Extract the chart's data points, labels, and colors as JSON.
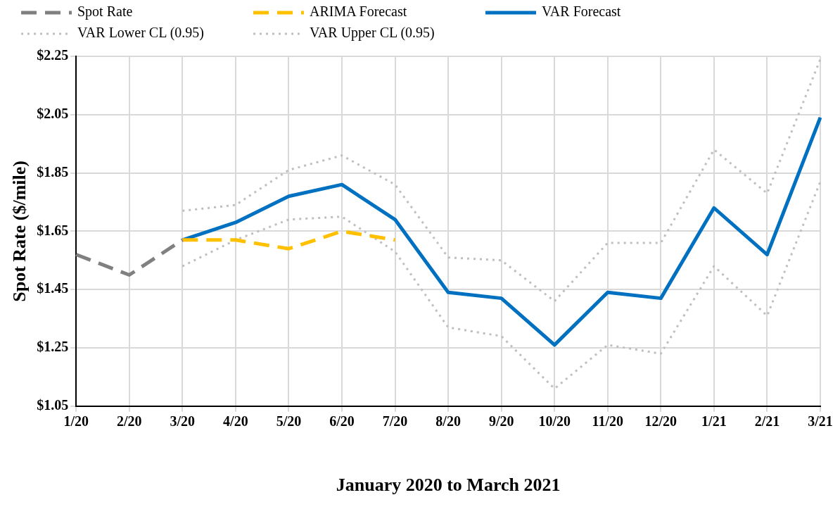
{
  "chart_data": {
    "type": "line",
    "xlabel": "January 2020 to March 2021",
    "ylabel": "Spot Rate ($/mile)",
    "categories": [
      "1/20",
      "2/20",
      "3/20",
      "4/20",
      "5/20",
      "6/20",
      "7/20",
      "8/20",
      "9/20",
      "10/20",
      "11/20",
      "12/20",
      "1/21",
      "2/21",
      "3/21"
    ],
    "ylim": [
      1.05,
      2.25
    ],
    "yticks": [
      {
        "value": 1.05,
        "label": "$1.05"
      },
      {
        "value": 1.25,
        "label": "$1.25"
      },
      {
        "value": 1.45,
        "label": "$1.45"
      },
      {
        "value": 1.65,
        "label": "$1.65"
      },
      {
        "value": 1.85,
        "label": "$1.85"
      },
      {
        "value": 2.05,
        "label": "$2.05"
      },
      {
        "value": 2.25,
        "label": "$2.25"
      }
    ],
    "grid": true,
    "legend": "top",
    "marker": "none",
    "series": [
      {
        "name": "Spot Rate",
        "color": "#808080",
        "line_style": "dashed",
        "values": [
          1.57,
          1.5,
          1.62,
          null,
          null,
          null,
          null,
          null,
          null,
          null,
          null,
          null,
          null,
          null,
          null
        ]
      },
      {
        "name": "ARIMA Forecast",
        "color": "#ffc000",
        "line_style": "dashed",
        "values": [
          null,
          null,
          1.62,
          1.62,
          1.59,
          1.65,
          1.62,
          null,
          null,
          null,
          null,
          null,
          null,
          null,
          null
        ]
      },
      {
        "name": "VAR Forecast",
        "color": "#0070c0",
        "line_style": "solid",
        "values": [
          null,
          null,
          1.62,
          1.68,
          1.77,
          1.81,
          1.69,
          1.44,
          1.42,
          1.26,
          1.44,
          1.42,
          1.73,
          1.57,
          2.04
        ]
      },
      {
        "name": "VAR Lower CL (0.95)",
        "color": "#bfbfbf",
        "line_style": "dotted",
        "values": [
          null,
          null,
          1.53,
          1.62,
          1.69,
          1.7,
          1.58,
          1.32,
          1.29,
          1.11,
          1.26,
          1.23,
          1.53,
          1.36,
          1.82
        ]
      },
      {
        "name": "VAR Upper CL (0.95)",
        "color": "#bfbfbf",
        "line_style": "dotted",
        "values": [
          null,
          null,
          1.72,
          1.74,
          1.86,
          1.91,
          1.81,
          1.56,
          1.55,
          1.41,
          1.61,
          1.61,
          1.93,
          1.78,
          2.24
        ]
      }
    ]
  }
}
